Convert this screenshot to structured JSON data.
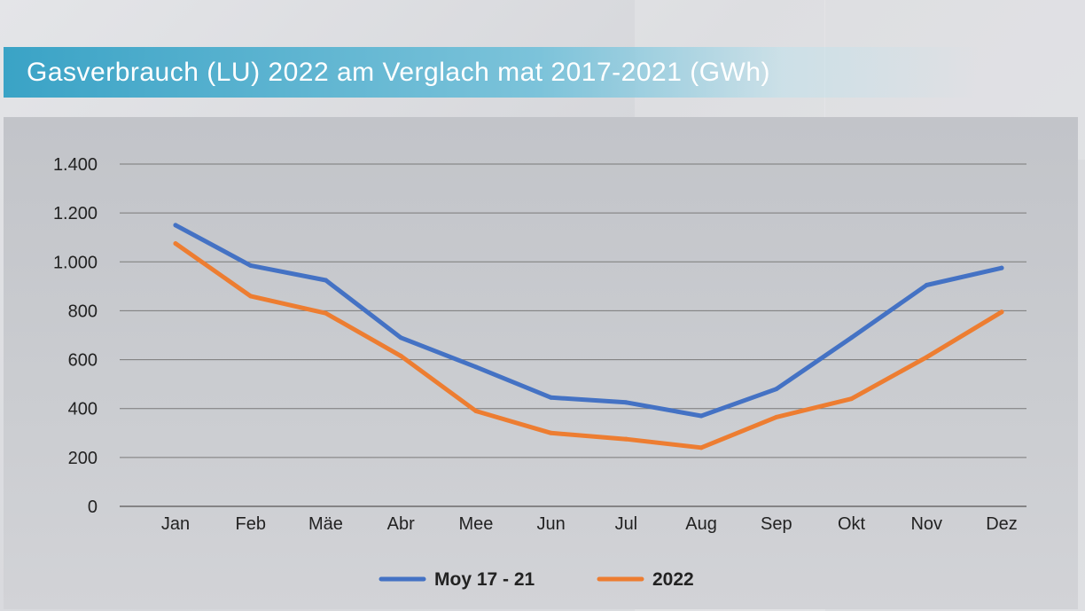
{
  "title": "Gasverbrauch (LU) 2022 am Verglach mat 2017-2021 (GWh)",
  "chart_data": {
    "type": "line",
    "title": "Gasverbrauch (LU) 2022 am Verglach mat 2017-2021 (GWh)",
    "xlabel": "",
    "ylabel": "",
    "categories": [
      "Jan",
      "Feb",
      "Mäe",
      "Abr",
      "Mee",
      "Jun",
      "Jul",
      "Aug",
      "Sep",
      "Okt",
      "Nov",
      "Dez"
    ],
    "ylim": [
      0,
      1400
    ],
    "yticks": [
      0,
      200,
      400,
      600,
      800,
      1000,
      1200,
      1400
    ],
    "ytick_labels": [
      "0",
      "200",
      "400",
      "600",
      "800",
      "1.000",
      "1.200",
      "1.400"
    ],
    "grid": true,
    "legend_position": "bottom-center",
    "series": [
      {
        "name": "Moy 17 - 21",
        "color": "#4472c4",
        "values": [
          1150,
          985,
          925,
          690,
          570,
          445,
          425,
          370,
          480,
          690,
          905,
          975
        ]
      },
      {
        "name": "2022",
        "color": "#ed7d31",
        "values": [
          1075,
          860,
          790,
          615,
          390,
          300,
          275,
          240,
          365,
          440,
          610,
          795
        ]
      }
    ]
  }
}
